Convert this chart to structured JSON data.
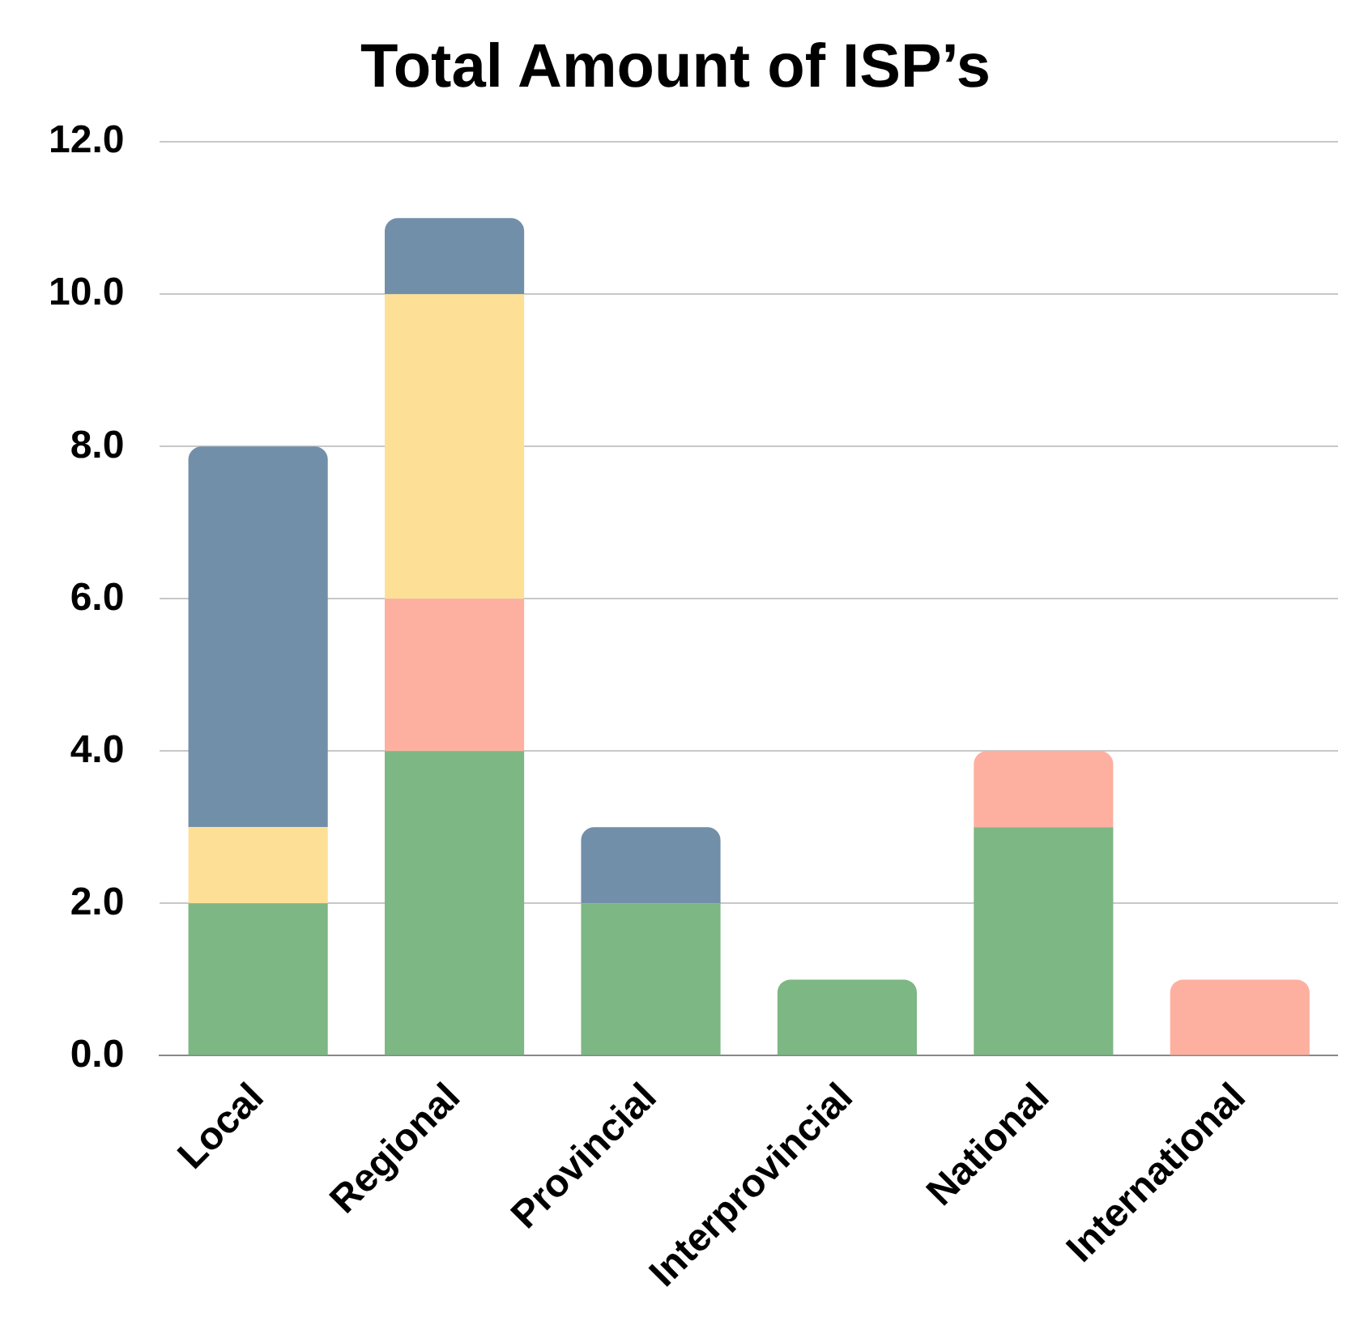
{
  "chart_data": {
    "type": "bar",
    "title": "Total Amount of ISP’s",
    "stacked": true,
    "categories": [
      "Local",
      "Regional",
      "Provincial",
      "Interprovincial",
      "National",
      "International"
    ],
    "series": [
      {
        "color": "#7db784",
        "values": [
          2,
          4,
          2,
          1,
          3,
          0
        ]
      },
      {
        "color": "#fdb0a0",
        "values": [
          0,
          2,
          0,
          0,
          1,
          1
        ]
      },
      {
        "color": "#fde096",
        "values": [
          1,
          4,
          0,
          0,
          0,
          0
        ]
      },
      {
        "color": "#728fa9",
        "values": [
          5,
          1,
          1,
          0,
          0,
          0
        ]
      }
    ],
    "ylim": [
      0,
      12
    ],
    "yticks": [
      {
        "value": 0,
        "label": "0.0"
      },
      {
        "value": 2,
        "label": "2.0"
      },
      {
        "value": 4,
        "label": "4.0"
      },
      {
        "value": 6,
        "label": "6.0"
      },
      {
        "value": 8,
        "label": "8.0"
      },
      {
        "value": 10,
        "label": "10.0"
      },
      {
        "value": 12,
        "label": "12.0"
      }
    ],
    "grid": "y",
    "legend": false
  }
}
